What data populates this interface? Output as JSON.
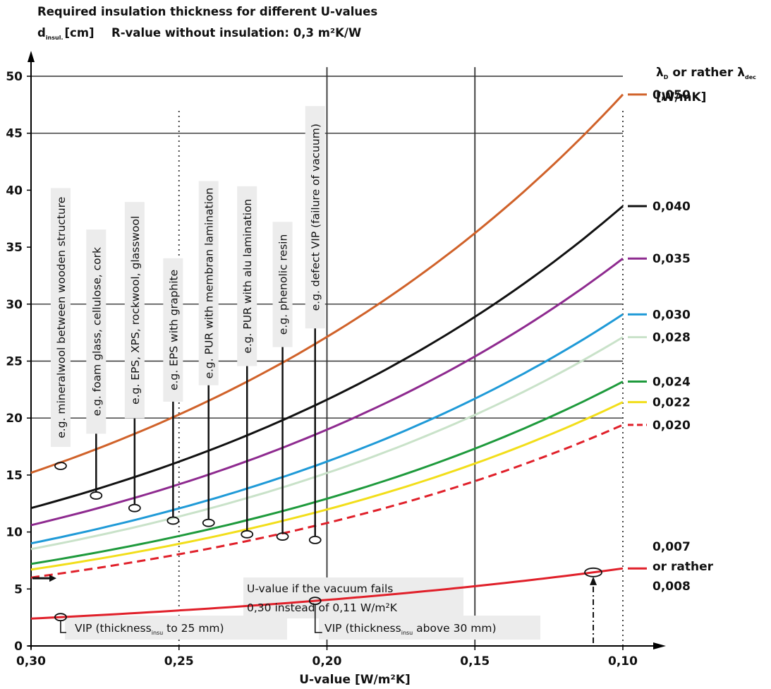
{
  "chart_data": {
    "type": "line",
    "title": "Required insulation thickness for different U-values",
    "subtitle": "R-value without insulation: 0,3 m²K/W",
    "ylabel": {
      "main": "d",
      "sub": "insul.",
      "unit": "[cm]"
    },
    "xlabel": "U-value [W/m²K]",
    "x_reversed": true,
    "xlim": [
      0.3,
      0.1
    ],
    "ylim": [
      0,
      50
    ],
    "xticks": [
      {
        "value": 0.3,
        "label": "0,30"
      },
      {
        "value": 0.25,
        "label": "0,25"
      },
      {
        "value": 0.2,
        "label": "0,20"
      },
      {
        "value": 0.15,
        "label": "0,15"
      },
      {
        "value": 0.1,
        "label": "0,10"
      }
    ],
    "yticks": [
      {
        "value": 0,
        "label": "0"
      },
      {
        "value": 5,
        "label": "5"
      },
      {
        "value": 10,
        "label": "10"
      },
      {
        "value": 15,
        "label": "15"
      },
      {
        "value": 20,
        "label": "20"
      },
      {
        "value": 25,
        "label": "25"
      },
      {
        "value": 30,
        "label": "30"
      },
      {
        "value": 35,
        "label": "35"
      },
      {
        "value": 40,
        "label": "40"
      },
      {
        "value": 45,
        "label": "45"
      },
      {
        "value": 50,
        "label": "50"
      }
    ],
    "grid": {
      "horizontal_solid": [
        20,
        25,
        30,
        45,
        50
      ],
      "vertical_solid": [
        0.2,
        0.15
      ],
      "vertical_dotted": [
        0.25,
        0.1
      ]
    },
    "legend_title": {
      "symbol": "λ",
      "sub": "D",
      "text": " or rather λ",
      "sub2": "dec",
      "unit": "[W/mK]"
    },
    "series": [
      {
        "name": "0,050",
        "color": "#d0622a",
        "style": "solid",
        "x": [
          0.3,
          0.2,
          0.1
        ],
        "y": [
          15.2,
          23.4,
          48.4
        ]
      },
      {
        "name": "0,040",
        "color": "#111111",
        "style": "solid",
        "x": [
          0.3,
          0.2,
          0.1
        ],
        "y": [
          12.1,
          18.7,
          38.6
        ]
      },
      {
        "name": "0,035",
        "color": "#8e2a8f",
        "style": "solid",
        "x": [
          0.3,
          0.2,
          0.1
        ],
        "y": [
          10.6,
          16.4,
          34.0
        ]
      },
      {
        "name": "0,030",
        "color": "#1f9ad7",
        "style": "solid",
        "x": [
          0.3,
          0.2,
          0.1
        ],
        "y": [
          9.0,
          14.0,
          29.1
        ]
      },
      {
        "name": "0,028",
        "color": "#c9e2c9",
        "style": "solid",
        "x": [
          0.3,
          0.2,
          0.1
        ],
        "y": [
          8.5,
          13.2,
          27.1
        ]
      },
      {
        "name": "0,024",
        "color": "#1e9a3c",
        "style": "solid",
        "x": [
          0.3,
          0.2,
          0.1
        ],
        "y": [
          7.2,
          11.2,
          23.2
        ]
      },
      {
        "name": "0,022",
        "color": "#f2de1a",
        "style": "solid",
        "x": [
          0.3,
          0.2,
          0.1
        ],
        "y": [
          6.7,
          10.2,
          21.4
        ]
      },
      {
        "name": "0,020",
        "color": "#e0202a",
        "style": "dashed",
        "x": [
          0.3,
          0.2,
          0.1
        ],
        "y": [
          6.0,
          9.3,
          19.4
        ]
      },
      {
        "name": "0,007 or rather 0,008",
        "label_lines": [
          "0,007",
          "or rather",
          "0,008"
        ],
        "color": "#e0202a",
        "style": "solid",
        "x": [
          0.3,
          0.2,
          0.1
        ],
        "y": [
          2.4,
          3.3,
          6.8
        ]
      }
    ],
    "materials": [
      {
        "label": "e.g. mineralwool between wooden structure",
        "x": 0.29,
        "y": 15.8
      },
      {
        "label": "e.g. foam glass, cellulose, cork",
        "x": 0.278,
        "y": 13.2
      },
      {
        "label": "e.g. EPS, XPS, rockwool, glasswool",
        "x": 0.265,
        "y": 12.1
      },
      {
        "label": "e.g. EPS with graphite",
        "x": 0.252,
        "y": 11.0
      },
      {
        "label": "e.g. PUR with membran lamination",
        "x": 0.24,
        "y": 10.8
      },
      {
        "label": "e.g. PUR with alu lamination",
        "x": 0.227,
        "y": 9.8
      },
      {
        "label": "e.g. phenolic resin",
        "x": 0.215,
        "y": 9.6
      },
      {
        "label": "e.g. defect VIP (failure of vacuum)",
        "x": 0.204,
        "y": 9.3
      }
    ],
    "annotations": {
      "vacuum_fail_line1": "U-value if the vacuum fails",
      "vacuum_fail_line2": "0,30 instead of 0,11 W/m²K",
      "vip1": {
        "pre": "VIP (thickness",
        "sub": "insu",
        "post": " to 25 mm)"
      },
      "vip2": {
        "pre": "VIP (thickness",
        "sub": "insu",
        "post": " above 30 mm)"
      }
    }
  }
}
